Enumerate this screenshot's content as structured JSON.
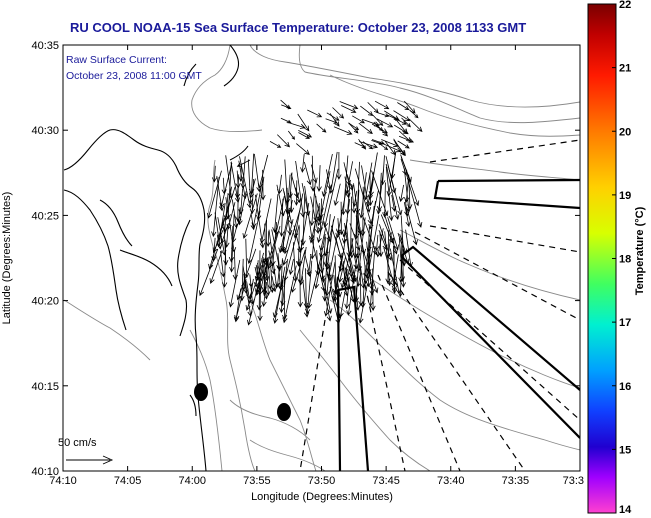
{
  "title": "RU COOL  NOAA-15  Sea Surface Temperature:  October 23, 2008 1133 GMT",
  "annotation": {
    "line1": "Raw Surface Current:",
    "line2": "October 23, 2008 11:00 GMT"
  },
  "scale_label": "50 cm/s",
  "x_axis": {
    "label": "Longitude (Degrees:Minutes)",
    "ticks": [
      "74:10",
      "74:05",
      "74:00",
      "73:55",
      "73:50",
      "73:45",
      "73:40",
      "73:35",
      "73:3"
    ]
  },
  "y_axis": {
    "label": "Latitude (Degrees:Minutes)",
    "ticks": [
      "40:35",
      "40:30",
      "40:25",
      "40:20",
      "40:15",
      "40:10"
    ]
  },
  "colorbar": {
    "label": "Temperature (°C)",
    "min": 14,
    "max": 22,
    "ticks": [
      "22",
      "21",
      "20",
      "19",
      "18",
      "17",
      "16",
      "15",
      "14"
    ]
  },
  "colors": {
    "title": "#1a1a9a",
    "coast": "#000000",
    "bathymetry": "#8a8a8a",
    "vectors": "#000000"
  }
}
